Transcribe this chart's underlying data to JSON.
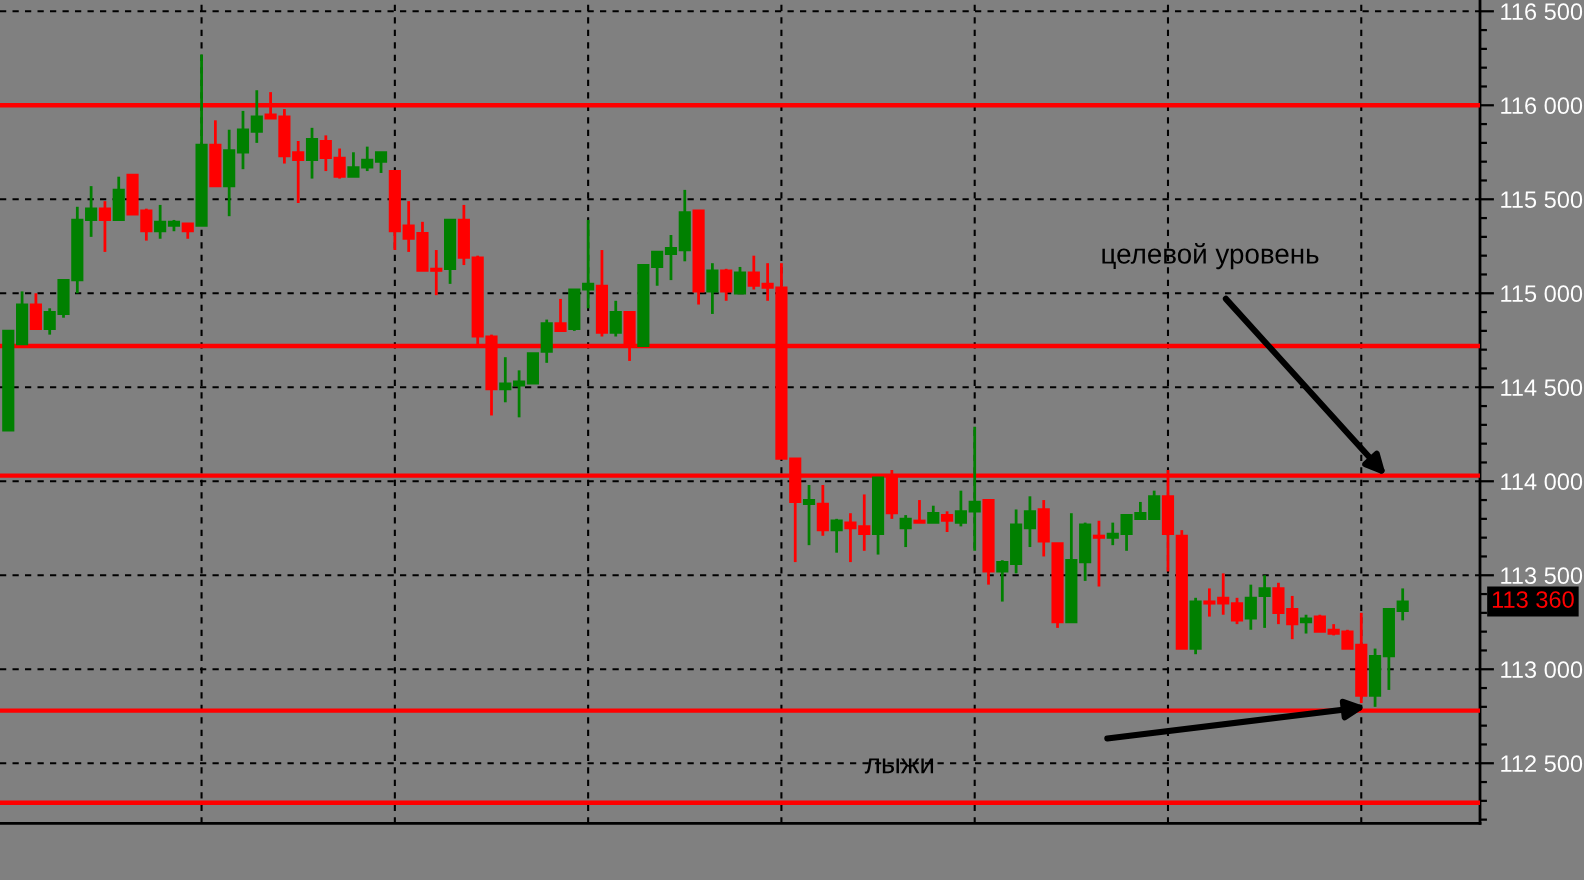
{
  "chart_data": {
    "type": "candlestick",
    "categories": [
      null,
      null,
      null,
      null,
      null,
      null,
      null,
      null,
      null,
      null,
      null,
      null,
      null,
      null,
      null,
      null,
      null,
      null,
      null,
      null,
      null,
      null,
      null,
      null,
      null,
      null,
      null,
      null,
      null,
      null,
      null,
      null,
      null,
      null,
      null,
      null,
      null,
      null,
      null,
      null,
      null,
      null,
      null,
      null,
      null,
      null,
      null,
      null,
      null,
      null,
      null,
      null,
      null,
      null,
      null,
      null,
      null,
      null,
      null,
      null,
      null,
      null,
      null,
      null,
      null,
      null,
      null,
      null,
      null,
      null,
      null,
      null,
      null,
      null,
      null,
      null,
      null,
      null,
      null,
      null,
      null,
      null,
      null,
      null,
      null,
      null,
      null,
      null,
      null,
      null,
      null,
      null,
      null,
      null,
      null,
      null,
      null,
      null,
      null,
      null,
      null,
      null
    ],
    "ohlc": [
      [
        114270,
        114800,
        114270,
        114800
      ],
      [
        114730,
        115010,
        114730,
        114940
      ],
      [
        114940,
        115000,
        114810,
        114810
      ],
      [
        114810,
        114920,
        114780,
        114900
      ],
      [
        114890,
        115070,
        114870,
        115070
      ],
      [
        115070,
        115460,
        115000,
        115390
      ],
      [
        115390,
        115570,
        115300,
        115450
      ],
      [
        115450,
        115490,
        115220,
        115390
      ],
      [
        115390,
        115620,
        115390,
        115550
      ],
      [
        115630,
        115630,
        115420,
        115420
      ],
      [
        115440,
        115450,
        115280,
        115330
      ],
      [
        115330,
        115470,
        115290,
        115380
      ],
      [
        115360,
        115390,
        115330,
        115380
      ],
      [
        115370,
        115370,
        115290,
        115330
      ],
      [
        115360,
        116270,
        115360,
        115790
      ],
      [
        115790,
        115920,
        115570,
        115570
      ],
      [
        115570,
        115870,
        115410,
        115760
      ],
      [
        115750,
        115970,
        115660,
        115870
      ],
      [
        115860,
        116080,
        115800,
        115940
      ],
      [
        115950,
        116070,
        115930,
        115930
      ],
      [
        115940,
        115980,
        115690,
        115730
      ],
      [
        115750,
        115810,
        115480,
        115710
      ],
      [
        115710,
        115880,
        115610,
        115820
      ],
      [
        115810,
        115840,
        115650,
        115720
      ],
      [
        115720,
        115770,
        115610,
        115620
      ],
      [
        115620,
        115750,
        115620,
        115670
      ],
      [
        115670,
        115780,
        115650,
        115710
      ],
      [
        115700,
        115750,
        115640,
        115750
      ],
      [
        115650,
        115650,
        115230,
        115330
      ],
      [
        115360,
        115490,
        115220,
        115290
      ],
      [
        115320,
        115380,
        115120,
        115120
      ],
      [
        115130,
        115230,
        114990,
        115120
      ],
      [
        115130,
        115390,
        115050,
        115390
      ],
      [
        115390,
        115470,
        115150,
        115190
      ],
      [
        115190,
        115200,
        114730,
        114770
      ],
      [
        114770,
        114780,
        114350,
        114490
      ],
      [
        114490,
        114660,
        114420,
        114520
      ],
      [
        114510,
        114590,
        114340,
        114530
      ],
      [
        114520,
        114680,
        114520,
        114680
      ],
      [
        114690,
        114860,
        114630,
        114840
      ],
      [
        114840,
        114970,
        114800,
        114800
      ],
      [
        114810,
        115020,
        114800,
        115020
      ],
      [
        115020,
        115390,
        114920,
        115050
      ],
      [
        115040,
        115230,
        114770,
        114790
      ],
      [
        114790,
        114960,
        114770,
        114900
      ],
      [
        114900,
        114900,
        114640,
        114720
      ],
      [
        114720,
        115150,
        114720,
        115150
      ],
      [
        115140,
        115220,
        115040,
        115220
      ],
      [
        115210,
        115310,
        115070,
        115240
      ],
      [
        115230,
        115550,
        115170,
        115430
      ],
      [
        115440,
        115440,
        114940,
        115010
      ],
      [
        115010,
        115160,
        114890,
        115120
      ],
      [
        115120,
        115130,
        114960,
        115010
      ],
      [
        115000,
        115140,
        115000,
        115110
      ],
      [
        115110,
        115200,
        115020,
        115040
      ],
      [
        115050,
        115160,
        114960,
        115030
      ],
      [
        115030,
        115160,
        114120,
        114120
      ],
      [
        114120,
        114120,
        113570,
        113890
      ],
      [
        113880,
        113980,
        113660,
        113900
      ],
      [
        113880,
        113980,
        113710,
        113740
      ],
      [
        113740,
        113800,
        113620,
        113790
      ],
      [
        113780,
        113830,
        113570,
        113750
      ],
      [
        113760,
        113930,
        113630,
        113720
      ],
      [
        113720,
        114020,
        113610,
        114020
      ],
      [
        114020,
        114060,
        113800,
        113830
      ],
      [
        113750,
        113820,
        113650,
        113800
      ],
      [
        113790,
        113900,
        113780,
        113780
      ],
      [
        113780,
        113870,
        113780,
        113830
      ],
      [
        113820,
        113840,
        113730,
        113790
      ],
      [
        113780,
        113950,
        113760,
        113840
      ],
      [
        113840,
        114290,
        113630,
        113890
      ],
      [
        113900,
        113900,
        113450,
        113520
      ],
      [
        113520,
        113580,
        113360,
        113570
      ],
      [
        113560,
        113850,
        113510,
        113770
      ],
      [
        113750,
        113920,
        113650,
        113840
      ],
      [
        113850,
        113900,
        113600,
        113680
      ],
      [
        113670,
        113670,
        113220,
        113250
      ],
      [
        113250,
        113830,
        113250,
        113580
      ],
      [
        113570,
        113780,
        113470,
        113770
      ],
      [
        113710,
        113790,
        113440,
        113700
      ],
      [
        113700,
        113780,
        113660,
        113720
      ],
      [
        113720,
        113820,
        113630,
        113820
      ],
      [
        113800,
        113890,
        113800,
        113830
      ],
      [
        113800,
        113950,
        113800,
        113920
      ],
      [
        113920,
        114060,
        113520,
        113720
      ],
      [
        113710,
        113740,
        113110,
        113110
      ],
      [
        113110,
        113380,
        113080,
        113360
      ],
      [
        113360,
        113430,
        113280,
        113350
      ],
      [
        113380,
        113510,
        113290,
        113350
      ],
      [
        113350,
        113380,
        113240,
        113260
      ],
      [
        113270,
        113450,
        113210,
        113380
      ],
      [
        113390,
        113500,
        113220,
        113430
      ],
      [
        113430,
        113460,
        113240,
        113300
      ],
      [
        113320,
        113390,
        113160,
        113240
      ],
      [
        113250,
        113290,
        113190,
        113270
      ],
      [
        113280,
        113290,
        113200,
        113200
      ],
      [
        113210,
        113240,
        113180,
        113190
      ],
      [
        113200,
        113210,
        113110,
        113110
      ],
      [
        113130,
        113300,
        112820,
        112860
      ],
      [
        112860,
        113110,
        112800,
        113070
      ],
      [
        113070,
        113320,
        112890,
        113320
      ],
      [
        113310,
        113430,
        113260,
        113360
      ]
    ],
    "colors": [
      "#008000",
      "#008000",
      "#ff0000",
      "#008000",
      "#008000",
      "#008000",
      "#008000",
      "#ff0000",
      "#008000",
      "#ff0000",
      "#ff0000",
      "#008000",
      "#008000",
      "#ff0000",
      "#008000",
      "#ff0000",
      "#008000",
      "#008000",
      "#008000",
      "#ff0000",
      "#ff0000",
      "#ff0000",
      "#008000",
      "#ff0000",
      "#ff0000",
      "#008000",
      "#008000",
      "#008000",
      "#ff0000",
      "#ff0000",
      "#ff0000",
      "#ff0000",
      "#008000",
      "#ff0000",
      "#ff0000",
      "#ff0000",
      "#008000",
      "#008000",
      "#008000",
      "#008000",
      "#ff0000",
      "#008000",
      "#008000",
      "#ff0000",
      "#008000",
      "#ff0000",
      "#008000",
      "#008000",
      "#008000",
      "#008000",
      "#ff0000",
      "#008000",
      "#ff0000",
      "#008000",
      "#ff0000",
      "#ff0000",
      "#ff0000",
      "#ff0000",
      "#008000",
      "#ff0000",
      "#008000",
      "#ff0000",
      "#ff0000",
      "#008000",
      "#ff0000",
      "#008000",
      "#ff0000",
      "#008000",
      "#ff0000",
      "#008000",
      "#008000",
      "#ff0000",
      "#008000",
      "#008000",
      "#008000",
      "#ff0000",
      "#ff0000",
      "#008000",
      "#008000",
      "#ff0000",
      "#008000",
      "#008000",
      "#008000",
      "#008000",
      "#ff0000",
      "#ff0000",
      "#008000",
      "#ff0000",
      "#ff0000",
      "#ff0000",
      "#008000",
      "#008000",
      "#ff0000",
      "#ff0000",
      "#008000",
      "#ff0000",
      "#ff0000",
      "#ff0000",
      "#ff0000",
      "#008000",
      "#008000",
      "#008000"
    ],
    "ylim": [
      112180,
      116560
    ],
    "yticks": [
      {
        "value": 112500,
        "label": "112 500"
      },
      {
        "value": 113000,
        "label": "113 000"
      },
      {
        "value": 113500,
        "label": "113 500"
      },
      {
        "value": 114000,
        "label": "114 000"
      },
      {
        "value": 114500,
        "label": "114 500"
      },
      {
        "value": 115000,
        "label": "115 000"
      },
      {
        "value": 115500,
        "label": "115 500"
      },
      {
        "value": 116000,
        "label": "116 000"
      },
      {
        "value": 116500,
        "label": "116 500"
      }
    ],
    "grid": true,
    "tick_labels": "y",
    "ref_lines": [
      {
        "axis": "y",
        "value": 116000,
        "color": "#ff0000"
      },
      {
        "axis": "y",
        "value": 114720,
        "color": "#ff0000"
      },
      {
        "axis": "y",
        "value": 114030,
        "color": "#ff0000"
      },
      {
        "axis": "y",
        "value": 112780,
        "color": "#ff0000"
      },
      {
        "axis": "y",
        "value": 112290,
        "color": "#ff0000"
      }
    ],
    "annotations": [
      "целевой уровень",
      {
        "text": "лыжи",
        "y": 112800
      },
      "113 360"
    ]
  }
}
